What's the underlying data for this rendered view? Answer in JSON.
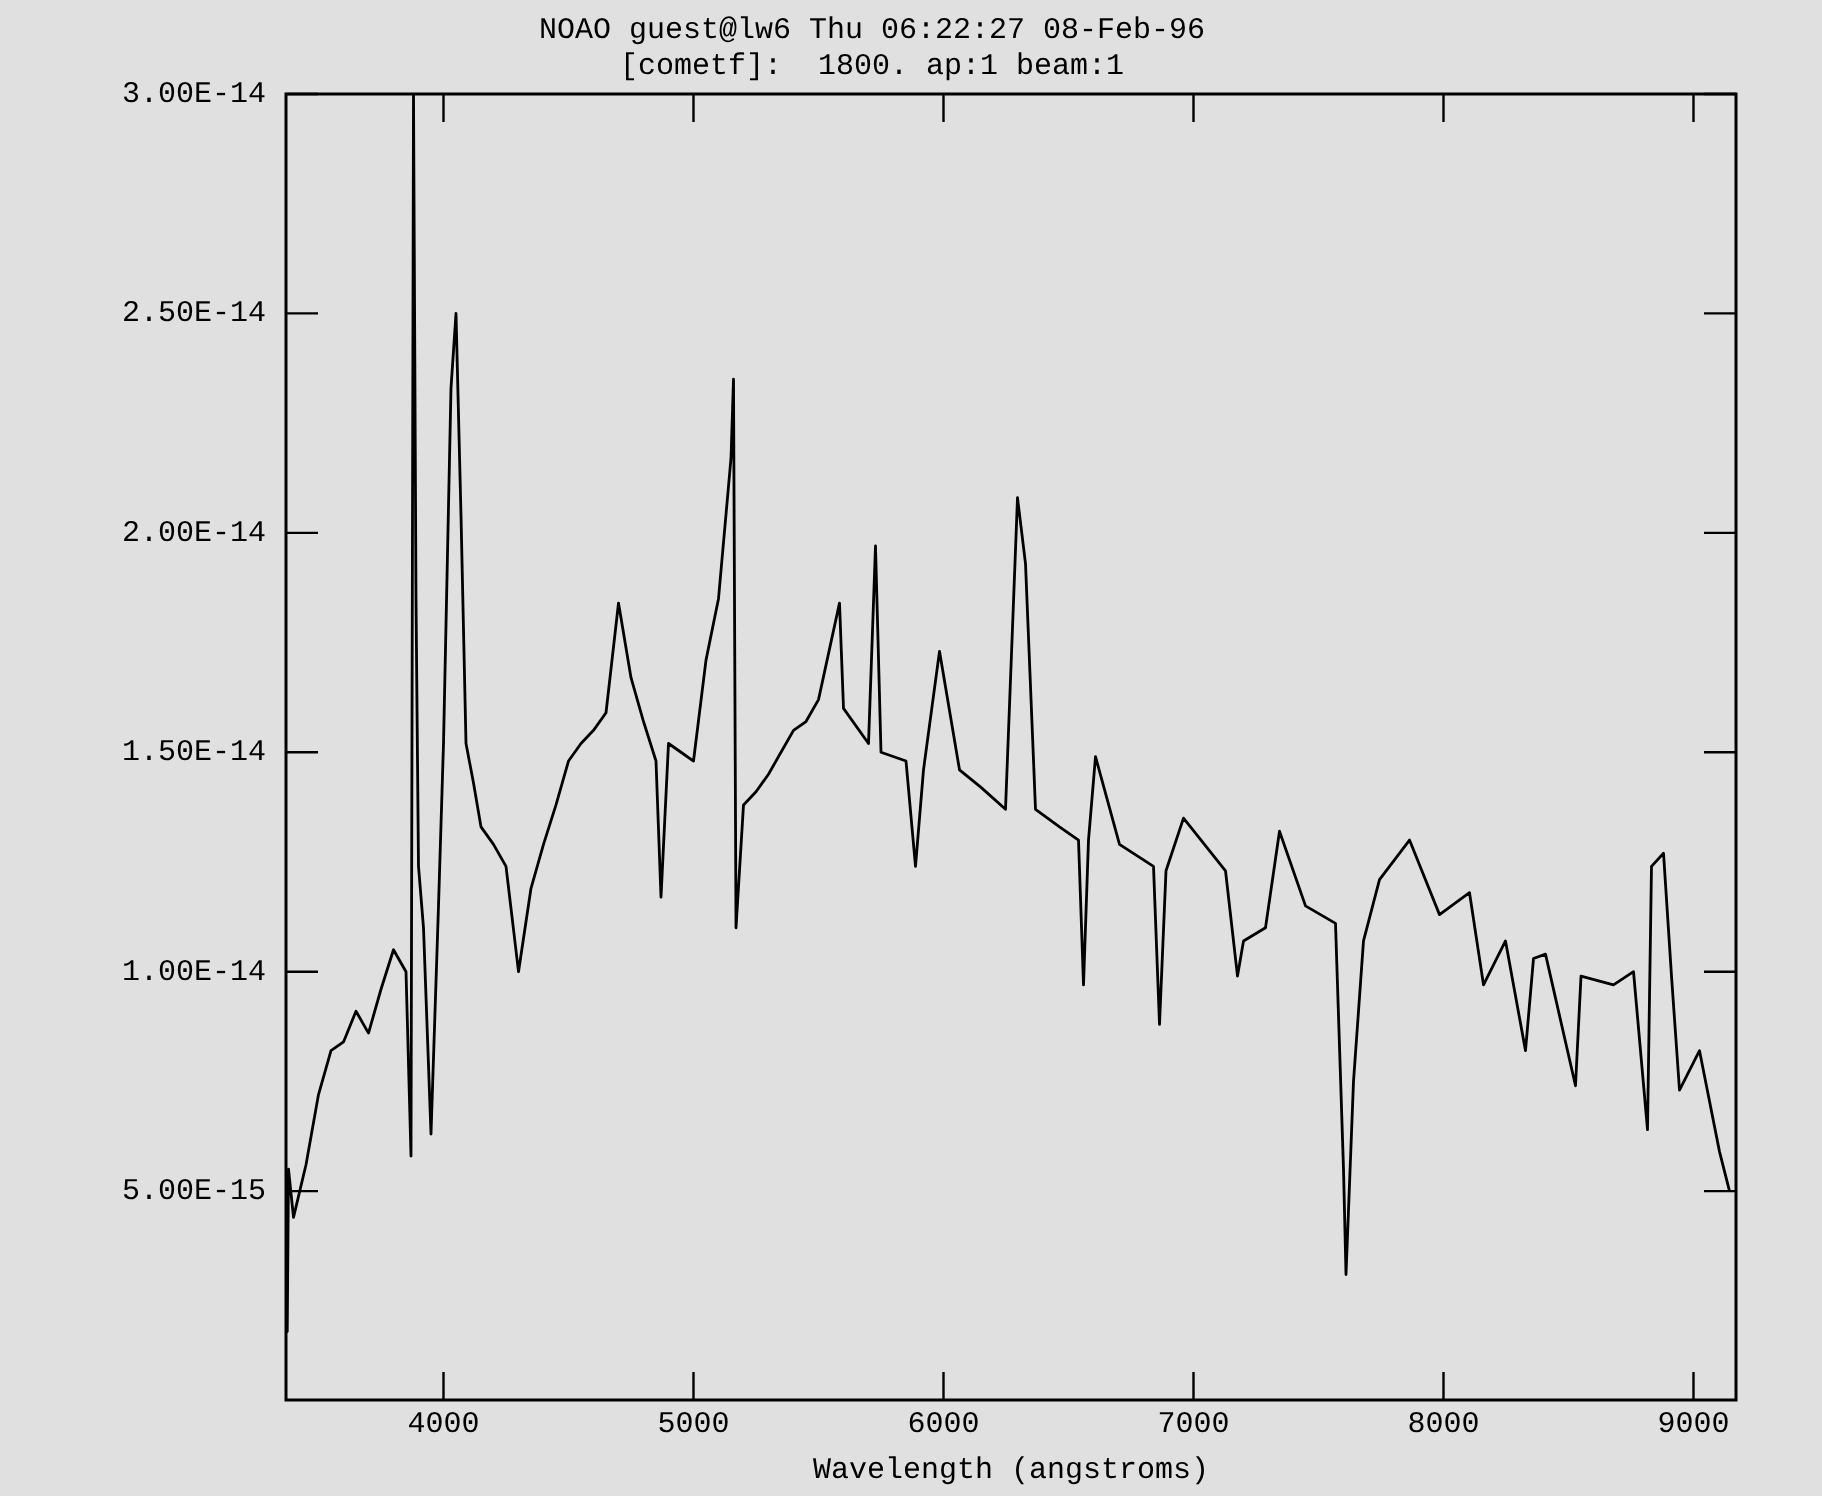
{
  "chart_data": {
    "type": "line",
    "title": "NOAO guest@lw6 Thu 06:22:27 08-Feb-96",
    "subtitle": "[cometf]:  1800. ap:1 beam:1",
    "xlabel": "Wavelength (angstroms)",
    "xlim": [
      3370,
      9170
    ],
    "xticks": [
      4000,
      5000,
      6000,
      7000,
      8000,
      9000
    ],
    "ylim": [
      2.4e-16,
      3e-14
    ],
    "yticks": [
      {
        "value": 5e-15,
        "label": "5.00E-15"
      },
      {
        "value": 1e-14,
        "label": "1.00E-14"
      },
      {
        "value": 1.5e-14,
        "label": "1.50E-14"
      },
      {
        "value": 2e-14,
        "label": "2.00E-14"
      },
      {
        "value": 2.5e-14,
        "label": "2.50E-14"
      },
      {
        "value": 3e-14,
        "label": "3.00E-14"
      }
    ],
    "grid": false,
    "legend": false,
    "marker": "none",
    "line_style": "solid",
    "series": [
      {
        "color": "#000000",
        "x": [
          3370,
          3375,
          3380,
          3400,
          3450,
          3500,
          3550,
          3600,
          3650,
          3700,
          3750,
          3800,
          3850,
          3870,
          3880,
          3890,
          3900,
          3920,
          3950,
          3980,
          4000,
          4030,
          4050,
          4070,
          4090,
          4120,
          4150,
          4200,
          4250,
          4300,
          4350,
          4400,
          4450,
          4500,
          4550,
          4600,
          4650,
          4700,
          4750,
          4800,
          4850,
          4870,
          4900,
          4950,
          5000,
          5050,
          5100,
          5150,
          5160,
          5170,
          5200,
          5250,
          5300,
          5350,
          5400,
          5450,
          5500,
          5584,
          5600,
          5700,
          5728,
          5750,
          5850,
          5888,
          5920,
          5984,
          6064,
          6150,
          6248,
          6296,
          6328,
          6368,
          6464,
          6540,
          6560,
          6580,
          6608,
          6704,
          6840,
          6864,
          6890,
          6960,
          7128,
          7176,
          7200,
          7288,
          7344,
          7448,
          7568,
          7600,
          7610,
          7640,
          7680,
          7744,
          7864,
          7984,
          8104,
          8160,
          8248,
          8328,
          8360,
          8408,
          8528,
          8550,
          8680,
          8760,
          8816,
          8832,
          8880,
          8912,
          8944,
          9024,
          9104,
          9144
        ],
        "values": [
          4.9e-15,
          1.8e-15,
          5.5e-15,
          4.4e-15,
          5.6e-15,
          7.2e-15,
          8.2e-15,
          8.4e-15,
          9.1e-15,
          8.6e-15,
          9.6e-15,
          1.05e-14,
          1e-14,
          5.8e-15,
          3e-14,
          1.85e-14,
          1.24e-14,
          1.1e-14,
          6.3e-15,
          1.15e-14,
          1.52e-14,
          2.33e-14,
          2.5e-14,
          2.04e-14,
          1.52e-14,
          1.43e-14,
          1.33e-14,
          1.29e-14,
          1.24e-14,
          1e-14,
          1.19e-14,
          1.29e-14,
          1.38e-14,
          1.48e-14,
          1.52e-14,
          1.55e-14,
          1.59e-14,
          1.84e-14,
          1.67e-14,
          1.57e-14,
          1.48e-14,
          1.17e-14,
          1.52e-14,
          1.5e-14,
          1.48e-14,
          1.71e-14,
          1.85e-14,
          2.17e-14,
          2.35e-14,
          1.1e-14,
          1.38e-14,
          1.41e-14,
          1.45e-14,
          1.5e-14,
          1.55e-14,
          1.57e-14,
          1.62e-14,
          1.84e-14,
          1.6e-14,
          1.52e-14,
          1.97e-14,
          1.5e-14,
          1.48e-14,
          1.24e-14,
          1.46e-14,
          1.73e-14,
          1.46e-14,
          1.42e-14,
          1.37e-14,
          2.08e-14,
          1.93e-14,
          1.37e-14,
          1.33e-14,
          1.3e-14,
          9.7e-15,
          1.3e-14,
          1.49e-14,
          1.29e-14,
          1.24e-14,
          8.8e-15,
          1.23e-14,
          1.35e-14,
          1.23e-14,
          9.9e-15,
          1.07e-14,
          1.1e-14,
          1.32e-14,
          1.15e-14,
          1.11e-14,
          5.5e-15,
          3.1e-15,
          7.5e-15,
          1.07e-14,
          1.21e-14,
          1.3e-14,
          1.13e-14,
          1.18e-14,
          9.7e-15,
          1.07e-14,
          8.2e-15,
          1.03e-14,
          1.04e-14,
          7.4e-15,
          9.9e-15,
          9.7e-15,
          1e-14,
          6.4e-15,
          1.24e-14,
          1.27e-14,
          9.9e-15,
          7.3e-15,
          8.2e-15,
          5.9e-15,
          5e-15
        ]
      }
    ]
  }
}
